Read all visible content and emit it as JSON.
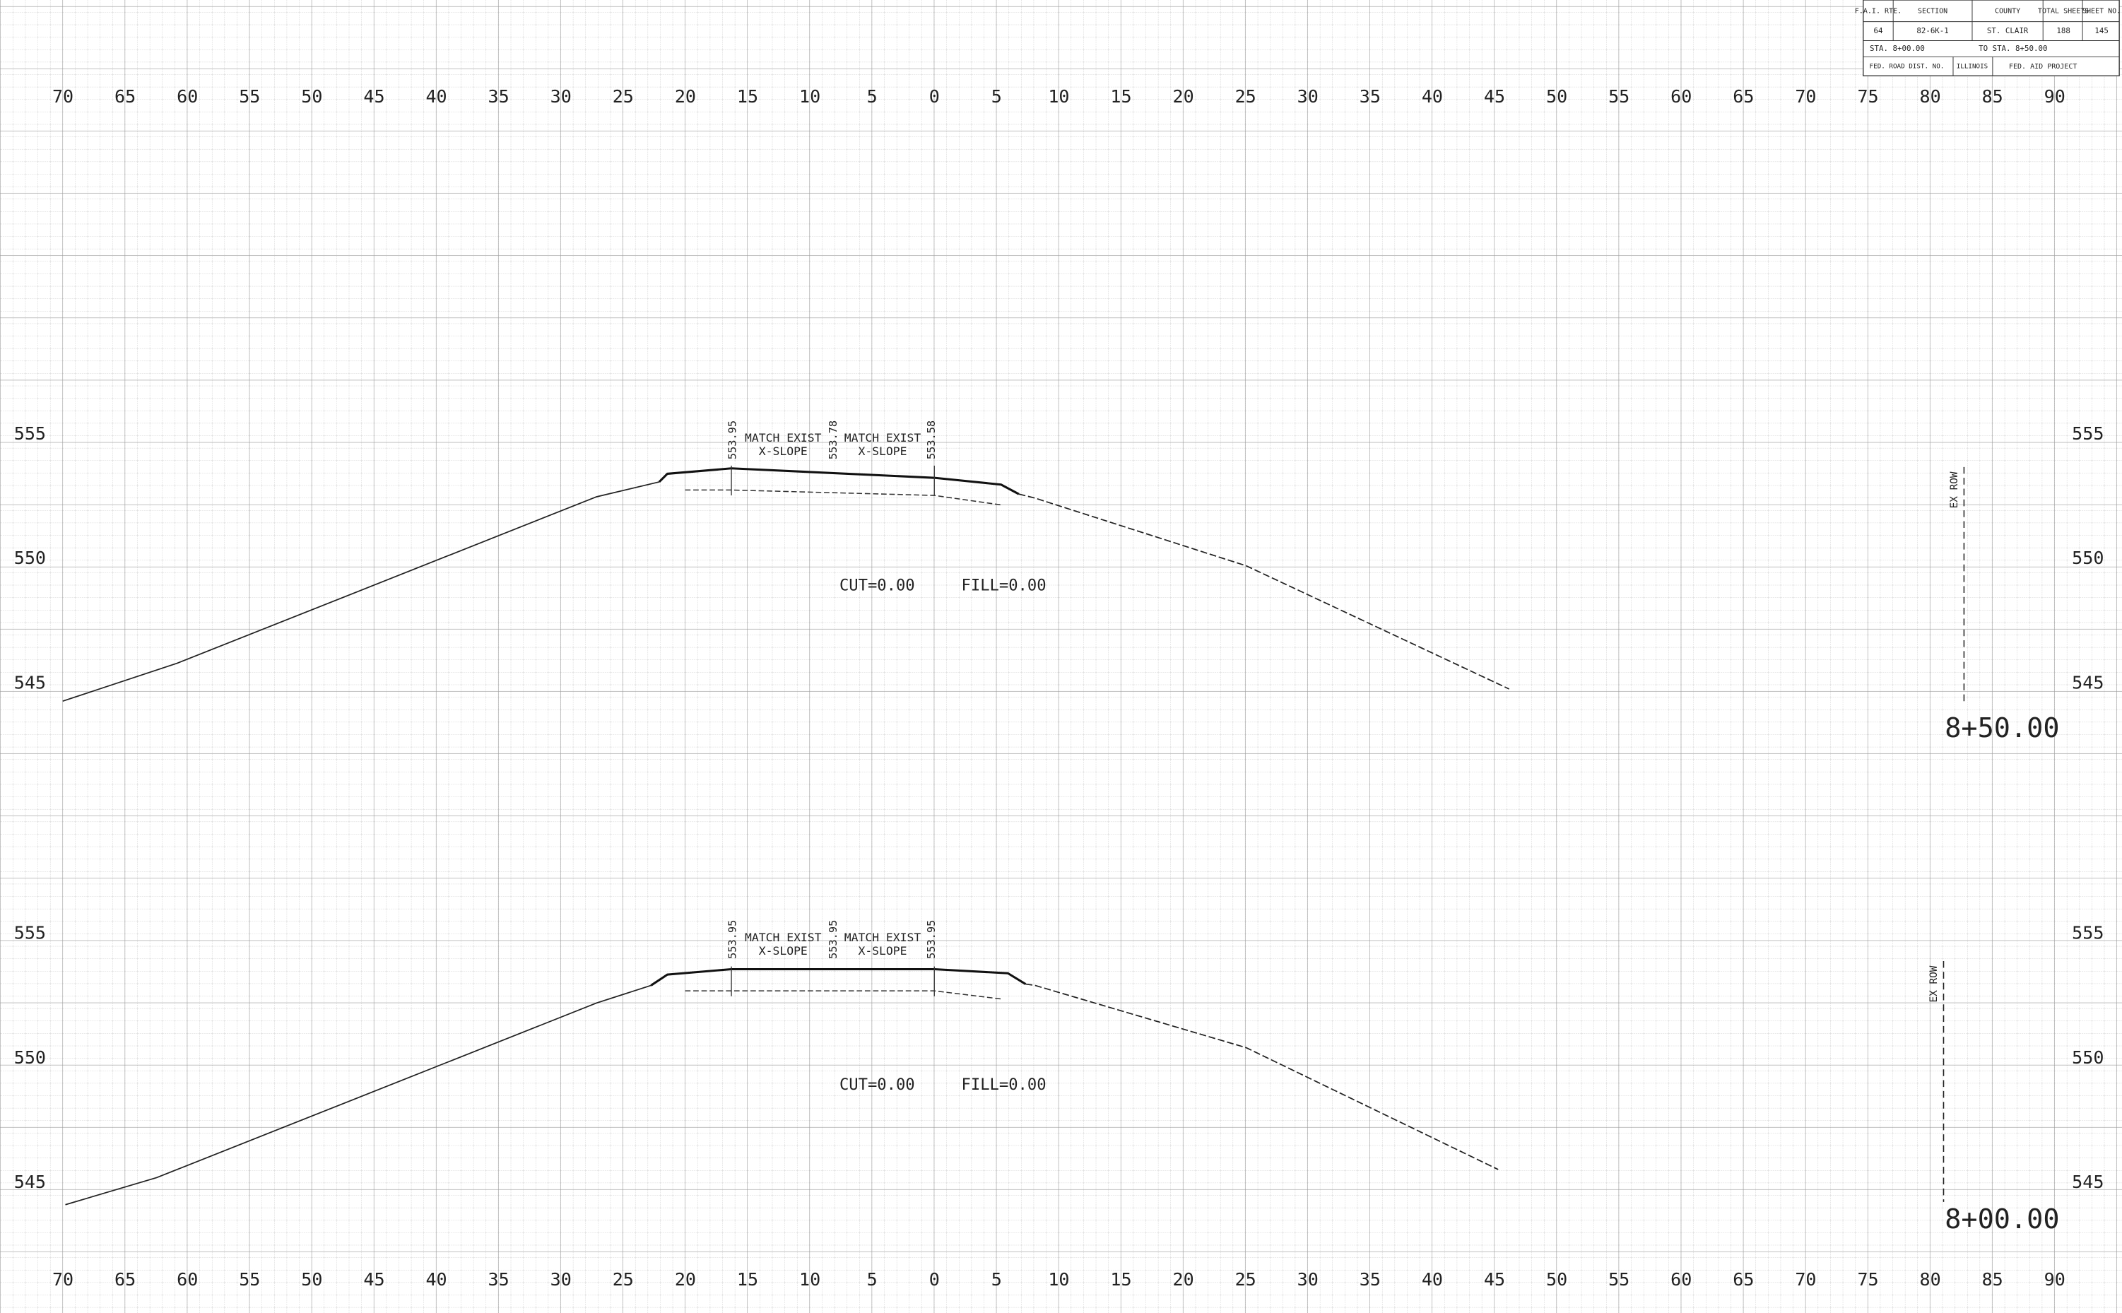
{
  "title_block": {
    "headers": [
      "F.A.I. RTE.",
      "SECTION",
      "COUNTY",
      "TOTAL SHEETS",
      "SHEET NO."
    ],
    "values": [
      "64",
      "82-6K-1",
      "ST. CLAIR",
      "188",
      "145"
    ],
    "station_row": [
      "STA. 8+00.00",
      "TO STA. 8+50.00"
    ],
    "footer_row": [
      "FED. ROAD DIST. NO.",
      "ILLINOIS",
      "FED. AID PROJECT"
    ]
  },
  "offset_labels": [
    "70",
    "65",
    "60",
    "55",
    "50",
    "45",
    "40",
    "35",
    "30",
    "25",
    "20",
    "15",
    "10",
    "5",
    "0",
    "5",
    "10",
    "15",
    "20",
    "25",
    "30",
    "35",
    "40",
    "45",
    "50",
    "55",
    "60",
    "65",
    "70",
    "75",
    "80",
    "85",
    "90"
  ],
  "sections": [
    {
      "station": "8+50.00",
      "elevation_labels": [
        "555",
        "550",
        "545"
      ],
      "point_elevations": [
        "553.95",
        "553.78",
        "553.58"
      ],
      "notes": [
        "MATCH EXIST",
        "X-SLOPE",
        "MATCH EXIST",
        "X-SLOPE"
      ],
      "cut": "CUT=0.00",
      "fill": "FILL=0.00",
      "row_label": "EX ROW"
    },
    {
      "station": "8+00.00",
      "elevation_labels": [
        "555",
        "550",
        "545"
      ],
      "point_elevations": [
        "553.95",
        "553.95",
        "553.95"
      ],
      "notes": [
        "MATCH EXIST",
        "X-SLOPE",
        "MATCH EXIST",
        "X-SLOPE"
      ],
      "cut": "CUT=0.00",
      "fill": "FILL=0.00",
      "row_label": "EX ROW"
    }
  ]
}
